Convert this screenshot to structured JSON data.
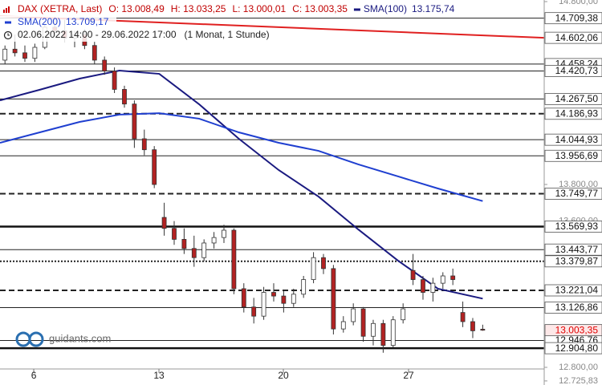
{
  "chart_data": {
    "type": "candlestick",
    "instrument": "DAX (XETRA, Last)",
    "ohlc_labels": [
      "O: 13.008,49",
      "H: 13.033,25",
      "L: 13.000,01",
      "C: 13.003,35"
    ],
    "period": "02.06.2022 14:00 - 29.06.2022 17:00",
    "resolution": "(1 Monat, 1 Stunde)",
    "watermark": "guidants.com",
    "up_color": "#ffffff",
    "down_color": "#b22222",
    "candle_stroke": "#333333",
    "x": [
      0.5,
      1.5,
      2.5,
      3.5,
      4.5,
      5.5,
      6.5,
      7.5,
      8.5,
      9.5,
      10.5,
      11.5,
      12.5,
      13.5,
      14.5,
      15.5,
      16.5,
      17.5,
      18.5,
      19.5,
      20.5,
      21.5,
      22.5,
      23.5,
      24.5,
      25.5,
      26.5,
      27.5,
      28.5,
      29.5,
      30.5,
      31.5,
      32.5,
      33.5,
      34.5,
      35.5,
      36.5,
      37.5,
      38.5,
      39.5,
      40.5,
      41.5,
      42.5,
      43.5,
      44.5,
      45.5,
      46.5,
      47.5,
      48.5
    ],
    "open": [
      14480,
      14540,
      14520,
      14490,
      14550,
      14660,
      14640,
      14600,
      14620,
      14560,
      14480,
      14420,
      14320,
      14240,
      14050,
      13990,
      13620,
      13560,
      13500,
      13450,
      13400,
      13480,
      13510,
      13550,
      13230,
      13130,
      13080,
      13210,
      13190,
      13150,
      13200,
      13280,
      13400,
      13340,
      13010,
      13050,
      13120,
      12970,
      13040,
      12920,
      13060,
      13330,
      13280,
      13210,
      13260,
      13300,
      13100,
      13050,
      13008.49
    ],
    "high": [
      14560,
      14620,
      14560,
      14570,
      14680,
      14720,
      14700,
      14640,
      14650,
      14580,
      14500,
      14440,
      14340,
      14260,
      14100,
      14010,
      13700,
      13600,
      13560,
      13520,
      13500,
      13540,
      13580,
      13560,
      13260,
      13180,
      13240,
      13260,
      13220,
      13230,
      13300,
      13430,
      13420,
      13360,
      13080,
      13150,
      13130,
      13060,
      13060,
      13080,
      13150,
      13420,
      13300,
      13290,
      13320,
      13340,
      13160,
      13070,
      13033.25
    ],
    "low": [
      14460,
      14500,
      14470,
      14470,
      14540,
      14620,
      14580,
      14550,
      14540,
      14460,
      14400,
      14300,
      14220,
      14000,
      13960,
      13780,
      13520,
      13470,
      13420,
      13350,
      13380,
      13450,
      13480,
      13200,
      13100,
      13040,
      13060,
      13160,
      13100,
      13130,
      13180,
      13260,
      13310,
      12980,
      12990,
      13030,
      12940,
      12920,
      12880,
      12910,
      13040,
      13250,
      13170,
      13160,
      13230,
      13250,
      13020,
      12960,
      13000.01
    ],
    "close": [
      14540,
      14520,
      14490,
      14550,
      14660,
      14640,
      14600,
      14620,
      14560,
      14480,
      14420,
      14320,
      14240,
      14050,
      13990,
      13800,
      13560,
      13500,
      13450,
      13400,
      13480,
      13510,
      13550,
      13230,
      13130,
      13080,
      13210,
      13190,
      13150,
      13200,
      13280,
      13400,
      13340,
      13010,
      13050,
      13120,
      12970,
      13040,
      12920,
      13060,
      13120,
      13280,
      13210,
      13260,
      13300,
      13280,
      13050,
      13000,
      13003.35
    ],
    "xlim": [
      0,
      54.68
    ],
    "xticks": [
      {
        "value": 3.39,
        "label": "6"
      },
      {
        "value": 15.97,
        "label": "13"
      },
      {
        "value": 28.47,
        "label": "20"
      },
      {
        "value": 41.05,
        "label": "27"
      }
    ],
    "ylim": [
      12703.5,
      14808.8
    ],
    "yticks": [
      {
        "value": 14800,
        "label": "14.800,00"
      },
      {
        "value": 13800,
        "label": "13.800,00"
      },
      {
        "value": 13600,
        "label": "13.600,00"
      },
      {
        "value": 12800,
        "label": "12.800,00"
      },
      {
        "value": 12725.83,
        "label": "12.725,83"
      }
    ],
    "series": [
      {
        "name": "SMA(100)",
        "color": "#1a1a80",
        "value_label": "13.175,74",
        "x": [
          0,
          4,
          8,
          12,
          16,
          20,
          24,
          28,
          32,
          36,
          40,
          44,
          48.5
        ],
        "values": [
          14260,
          14318,
          14379,
          14423,
          14405,
          14239,
          14050,
          13879,
          13734,
          13554,
          13383,
          13230,
          13175.74
        ]
      },
      {
        "name": "SMA(200)",
        "color": "#1f3fd0",
        "value_label": "13.709,17",
        "x": [
          0,
          4,
          8,
          12,
          16,
          20,
          24,
          28,
          32,
          36,
          40,
          44,
          48.5
        ],
        "values": [
          14028,
          14085,
          14142,
          14182,
          14190,
          14160,
          14085,
          14028,
          13984,
          13910,
          13844,
          13778,
          13709.17
        ]
      }
    ],
    "trendline": {
      "color": "#e02020",
      "x": [
        0,
        54.68
      ],
      "values": [
        14721,
        14602.06
      ],
      "label": "14.602,06"
    },
    "levels": [
      {
        "value": 14709.38,
        "label": "14.709,38",
        "style": "thin"
      },
      {
        "value": 14458.24,
        "label": "14.458,24",
        "style": "thin"
      },
      {
        "value": 14420.73,
        "label": "14.420,73",
        "style": "thin"
      },
      {
        "value": 14267.5,
        "label": "14.267,50",
        "style": "thin"
      },
      {
        "value": 14186.93,
        "label": "14.186,93",
        "style": "dashed"
      },
      {
        "value": 14044.93,
        "label": "14.044,93",
        "style": "thin"
      },
      {
        "value": 13956.69,
        "label": "13.956,69",
        "style": "thin"
      },
      {
        "value": 13749.77,
        "label": "13.749,77",
        "style": "dashed"
      },
      {
        "value": 13569.93,
        "label": "13.569,93",
        "style": "thick"
      },
      {
        "value": 13443.77,
        "label": "13.443,77",
        "style": "thin"
      },
      {
        "value": 13379.87,
        "label": "13.379,87",
        "style": "dotted"
      },
      {
        "value": 13221.04,
        "label": "13.221,04",
        "style": "dashed"
      },
      {
        "value": 13126.86,
        "label": "13.126,86",
        "style": "thin"
      },
      {
        "value": 12946.76,
        "label": "12.946,76",
        "style": "thin"
      },
      {
        "value": 12904.8,
        "label": "12.904,80",
        "style": "thick"
      }
    ],
    "last_price": {
      "value": 13003.35,
      "label": "13.003,35",
      "color": "#e00000"
    }
  }
}
